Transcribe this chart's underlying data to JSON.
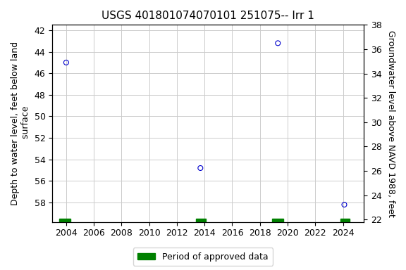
{
  "title": "USGS 401801074070101 251075-- Irr 1",
  "ylabel_left": "Depth to water level, feet below land\n surface",
  "ylabel_right": "Groundwater level above NAVD 1988, feet",
  "data_points": [
    {
      "year": 2004.0,
      "depth": 45.0
    },
    {
      "year": 2013.7,
      "depth": 54.8
    },
    {
      "year": 2019.3,
      "depth": 43.2
    },
    {
      "year": 2024.1,
      "depth": 58.2
    }
  ],
  "approved_periods": [
    {
      "start": 2003.5,
      "end": 2004.3
    },
    {
      "start": 2013.4,
      "end": 2014.1
    },
    {
      "start": 2018.9,
      "end": 2019.7
    },
    {
      "start": 2023.8,
      "end": 2024.5
    }
  ],
  "xlim": [
    2003.0,
    2025.5
  ],
  "ylim_left": [
    59.8,
    41.5
  ],
  "ylim_right": [
    21.8,
    38.0
  ],
  "xticks": [
    2004,
    2006,
    2008,
    2010,
    2012,
    2014,
    2016,
    2018,
    2020,
    2022,
    2024
  ],
  "yticks_left": [
    42,
    44,
    46,
    48,
    50,
    52,
    54,
    56,
    58
  ],
  "yticks_right": [
    22,
    24,
    26,
    28,
    30,
    32,
    34,
    36,
    38
  ],
  "point_color": "#0000cc",
  "point_marker_size": 5,
  "approved_color": "#008000",
  "grid_color": "#cccccc",
  "bg_color": "#ffffff",
  "title_fontsize": 11,
  "label_fontsize": 9,
  "tick_fontsize": 9,
  "font_family": "monospace"
}
